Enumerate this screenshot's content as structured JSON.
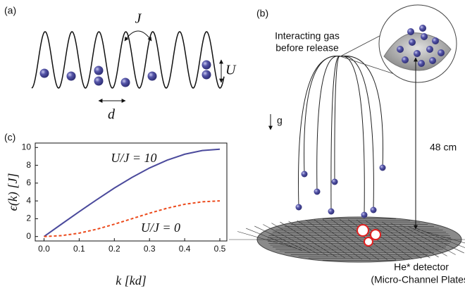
{
  "panel_a": {
    "label": "(a)",
    "hopping": "J",
    "interaction": "U",
    "spacing": "d"
  },
  "panel_b": {
    "label": "(b)",
    "source": [
      "Interacting gas",
      "before release"
    ],
    "gravity": "g",
    "height": "48 cm",
    "detector": [
      "He* detector",
      "(Micro-Channel Plates)"
    ]
  },
  "chart_data": {
    "type": "line",
    "label": "(c)",
    "xlabel": "k [kd]",
    "ylabel": "ϵ(k) [J]",
    "x": [
      0,
      0.05,
      0.1,
      0.15,
      0.2,
      0.25,
      0.3,
      0.35,
      0.4,
      0.45,
      0.5
    ],
    "series": [
      {
        "name": "U/J = 10",
        "color": "#4b4a9c",
        "dash": false,
        "values": [
          0,
          1.4,
          2.79,
          4.14,
          5.44,
          6.63,
          7.7,
          8.58,
          9.24,
          9.66,
          9.8
        ]
      },
      {
        "name": "U/J = 0",
        "color": "#ec4a1c",
        "dash": true,
        "values": [
          0,
          0.1,
          0.38,
          0.82,
          1.38,
          2,
          2.62,
          3.18,
          3.62,
          3.9,
          4
        ]
      }
    ],
    "xlim": [
      -0.025,
      0.52
    ],
    "ylim": [
      -0.5,
      10.5
    ],
    "xticks": [
      {
        "value": 0,
        "label": "0.0"
      },
      0.1,
      0.2,
      0.3,
      0.4,
      0.5
    ],
    "yticks": [
      0,
      2,
      4,
      6,
      8,
      10
    ]
  }
}
